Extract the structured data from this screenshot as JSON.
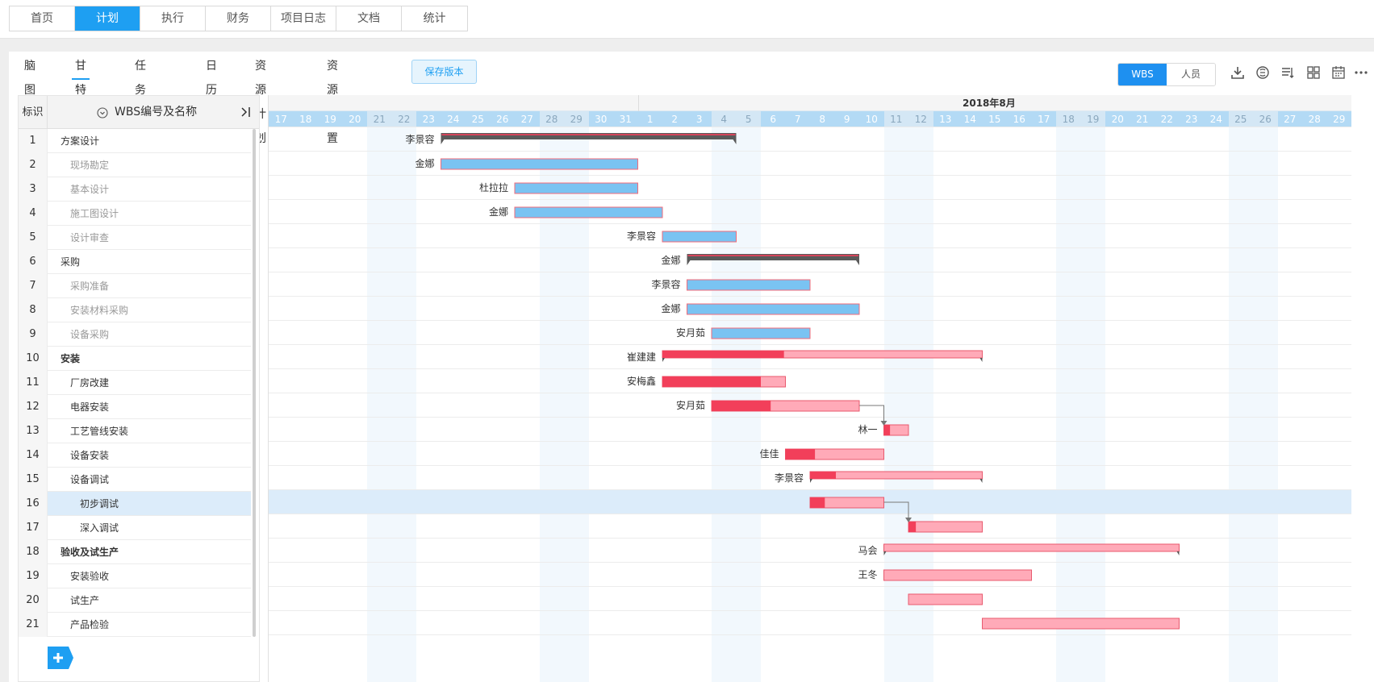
{
  "top_nav": [
    "首页",
    "计划",
    "执行",
    "财务",
    "项目日志",
    "文档",
    "统计"
  ],
  "top_nav_active": 1,
  "sub_tabs": [
    "脑图",
    "甘特图",
    "任务列表",
    "日历",
    "资源计划",
    "资源设置"
  ],
  "sub_tabs_active": 1,
  "save_button": "保存版本",
  "view_toggle": [
    "WBS",
    "人员"
  ],
  "view_toggle_active": 0,
  "table_header": {
    "index": "标识",
    "name": "WBS编号及名称"
  },
  "month_label": "2018年8月",
  "days": [
    "17",
    "18",
    "19",
    "20",
    "21",
    "22",
    "23",
    "24",
    "25",
    "26",
    "27",
    "28",
    "29",
    "30",
    "31",
    "1",
    "2",
    "3",
    "4",
    "5",
    "6",
    "7",
    "8",
    "9",
    "10",
    "11",
    "12",
    "13",
    "14",
    "15",
    "16",
    "17",
    "18",
    "19",
    "20",
    "21",
    "22",
    "23",
    "24",
    "25",
    "26",
    "27",
    "28",
    "29"
  ],
  "weekend_days": [
    4,
    5,
    11,
    12,
    18,
    19,
    25,
    26,
    32,
    33,
    39,
    40
  ],
  "colors": {
    "summary_gray": "#5a5a5a",
    "plan_blue": "#7ac3f2",
    "progress_red": "#f23f5a",
    "remain_pink": "#ffaab8",
    "accent": "#1e9ff2"
  },
  "tasks": [
    {
      "id": "1",
      "name": "方案设计",
      "level": 1,
      "bold": false,
      "muted": false,
      "owner": "李景容",
      "start": 7,
      "end": 19,
      "type": "summary"
    },
    {
      "id": "2",
      "name": "现场勘定",
      "level": 2,
      "muted": true,
      "owner": "金娜",
      "start": 7,
      "end": 15,
      "type": "plan"
    },
    {
      "id": "3",
      "name": "基本设计",
      "level": 2,
      "muted": true,
      "owner": "杜拉拉",
      "start": 10,
      "end": 15,
      "type": "plan"
    },
    {
      "id": "4",
      "name": "施工图设计",
      "level": 2,
      "muted": true,
      "owner": "金娜",
      "start": 10,
      "end": 16,
      "type": "plan"
    },
    {
      "id": "5",
      "name": "设计审查",
      "level": 2,
      "muted": true,
      "owner": "李景容",
      "start": 16,
      "end": 19,
      "type": "plan"
    },
    {
      "id": "6",
      "name": "采购",
      "level": 1,
      "muted": false,
      "owner": "金娜",
      "start": 17,
      "end": 24,
      "type": "summary"
    },
    {
      "id": "7",
      "name": "采购准备",
      "level": 2,
      "muted": true,
      "owner": "李景容",
      "start": 17,
      "end": 22,
      "type": "plan"
    },
    {
      "id": "8",
      "name": "安装材料采购",
      "level": 2,
      "muted": true,
      "owner": "金娜",
      "start": 17,
      "end": 24,
      "type": "plan"
    },
    {
      "id": "9",
      "name": "设备采购",
      "level": 2,
      "muted": true,
      "owner": "安月茹",
      "start": 18,
      "end": 22,
      "type": "plan"
    },
    {
      "id": "10",
      "name": "安装",
      "level": 1,
      "bold": true,
      "owner": "崔建建",
      "start": 16,
      "end": 29,
      "progress": 0.38,
      "type": "summary-progress"
    },
    {
      "id": "11",
      "name": "厂房改建",
      "level": 2,
      "owner": "安梅鑫",
      "start": 16,
      "end": 21,
      "progress": 0.8,
      "type": "progress"
    },
    {
      "id": "12",
      "name": "电器安装",
      "level": 2,
      "owner": "安月茹",
      "start": 18,
      "end": 24,
      "progress": 0.4,
      "type": "progress"
    },
    {
      "id": "13",
      "name": "工艺管线安装",
      "level": 2,
      "owner": "林一",
      "start": 25,
      "end": 26,
      "progress": 0.25,
      "type": "progress"
    },
    {
      "id": "14",
      "name": "设备安装",
      "level": 2,
      "owner": "佳佳",
      "start": 21,
      "end": 25,
      "progress": 0.3,
      "type": "progress"
    },
    {
      "id": "15",
      "name": "设备调试",
      "level": 2,
      "owner": "李景容",
      "start": 22,
      "end": 29,
      "progress": 0.15,
      "type": "summary-progress"
    },
    {
      "id": "16",
      "name": "初步调试",
      "level": 3,
      "owner": "",
      "start": 22,
      "end": 25,
      "progress": 0.2,
      "type": "progress",
      "selected": true
    },
    {
      "id": "17",
      "name": "深入调试",
      "level": 3,
      "owner": "",
      "start": 26,
      "end": 29,
      "progress": 0.1,
      "type": "progress"
    },
    {
      "id": "18",
      "name": "验收及试生产",
      "level": 1,
      "bold": true,
      "owner": "马会",
      "start": 25,
      "end": 37,
      "progress": 0,
      "type": "summary-progress"
    },
    {
      "id": "19",
      "name": "安装验收",
      "level": 2,
      "owner": "王冬",
      "start": 25,
      "end": 31,
      "progress": 0,
      "type": "progress"
    },
    {
      "id": "20",
      "name": "试生产",
      "level": 2,
      "owner": "",
      "start": 26,
      "end": 29,
      "progress": 0,
      "type": "progress"
    },
    {
      "id": "21",
      "name": "产品检验",
      "level": 2,
      "owner": "",
      "start": 29,
      "end": 37,
      "progress": 0,
      "type": "progress"
    }
  ],
  "dependencies": [
    [
      12,
      13
    ],
    [
      16,
      17
    ]
  ]
}
